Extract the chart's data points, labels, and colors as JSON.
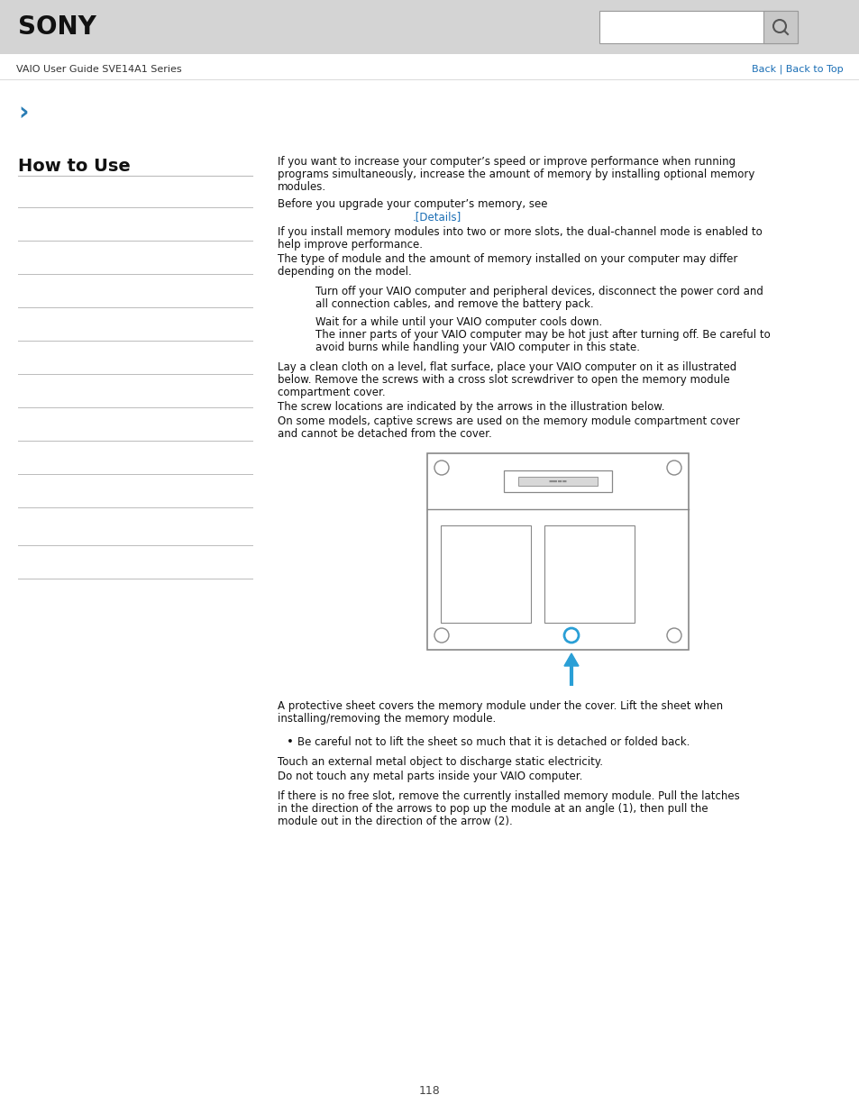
{
  "bg_color": "#ffffff",
  "header_bg": "#d4d4d4",
  "header_text": "SONY",
  "nav_text": "VAIO User Guide SVE14A1 Series",
  "nav_links": "Back | Back to Top",
  "nav_link_color": "#1a6eb5",
  "breadcrumb_symbol": "›",
  "breadcrumb_color": "#2a7db5",
  "section_title": "How to Use",
  "section_title_color": "#111111",
  "left_lines_color": "#bbbbbb",
  "body_text_color": "#111111",
  "link_color": "#1a6eb5",
  "details_link": ".[Details]",
  "para1": "If you want to increase your computer’s speed or improve performance when running\nprograms simultaneously, increase the amount of memory by installing optional memory\nmodules.",
  "para2": "Before you upgrade your computer’s memory, see",
  "para3": "If you install memory modules into two or more slots, the dual-channel mode is enabled to\nhelp improve performance.",
  "para4": "The type of module and the amount of memory installed on your computer may differ\ndepending on the model.",
  "indent1": "Turn off your VAIO computer and peripheral devices, disconnect the power cord and\nall connection cables, and remove the battery pack.",
  "indent2a": "Wait for a while until your VAIO computer cools down.",
  "indent2b": "The inner parts of your VAIO computer may be hot just after turning off. Be careful to\navoid burns while handling your VAIO computer in this state.",
  "indent3": "Lay a clean cloth on a level, flat surface, place your VAIO computer on it as illustrated\nbelow. Remove the screws with a cross slot screwdriver to open the memory module\ncompartment cover.",
  "indent4a": "The screw locations are indicated by the arrows in the illustration below.",
  "indent4b": "On some models, captive screws are used on the memory module compartment cover\nand cannot be detached from the cover.",
  "after_img1": "A protective sheet covers the memory module under the cover. Lift the sheet when\ninstalling/removing the memory module.",
  "bullet1": "Be careful not to lift the sheet so much that it is detached or folded back.",
  "after_bullet1a": "Touch an external metal object to discharge static electricity.",
  "after_bullet1b": "Do not touch any metal parts inside your VAIO computer.",
  "after_bullet2": "If there is no free slot, remove the currently installed memory module. Pull the latches\nin the direction of the arrows to pop up the module at an angle (1), then pull the\nmodule out in the direction of the arrow (2).",
  "page_number": "118",
  "arrow_color": "#2a9fd6",
  "diagram_border": "#888888"
}
